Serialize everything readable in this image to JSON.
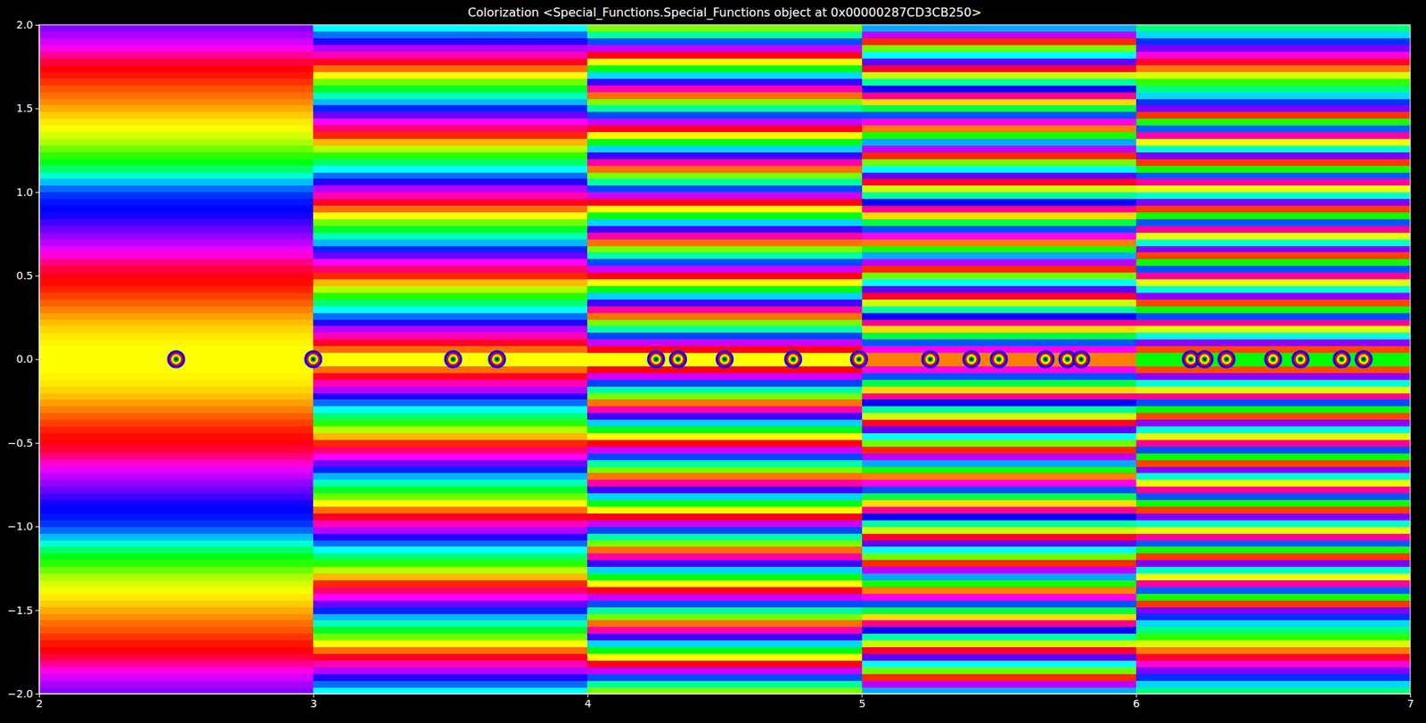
{
  "chart_data": {
    "type": "heatmap",
    "title": "Colorization <Special_Functions.Special_Functions object at 0x00000287CD3CB250>",
    "xlim": [
      2,
      7
    ],
    "ylim": [
      -2,
      2
    ],
    "xticks": [
      2,
      3,
      4,
      5,
      6,
      7
    ],
    "yticks": [
      {
        "value": -2,
        "label": "−2.0"
      },
      {
        "value": -1.5,
        "label": "−1.5"
      },
      {
        "value": -1,
        "label": "−1.0"
      },
      {
        "value": -0.5,
        "label": "−0.5"
      },
      {
        "value": 0,
        "label": "0.0"
      },
      {
        "value": 0.5,
        "label": "0.5"
      },
      {
        "value": 1,
        "label": "1.0"
      },
      {
        "value": 1.5,
        "label": "1.5"
      },
      {
        "value": 2,
        "label": "2.0"
      }
    ],
    "zlim": [
      0,
      360
    ],
    "x_bins": [
      2,
      3,
      4,
      5,
      6,
      7
    ],
    "y_bins": [
      -2,
      -1.96,
      -1.92,
      -1.88,
      -1.84,
      -1.8,
      -1.76,
      -1.72,
      -1.68,
      -1.64,
      -1.6,
      -1.56,
      -1.52,
      -1.48,
      -1.44,
      -1.4,
      -1.36,
      -1.32,
      -1.28,
      -1.24,
      -1.2,
      -1.16,
      -1.12,
      -1.08,
      -1.04,
      -1,
      -0.96,
      -0.92,
      -0.88,
      -0.84,
      -0.8,
      -0.76,
      -0.72,
      -0.68,
      -0.64,
      -0.6,
      -0.56,
      -0.52,
      -0.48,
      -0.44,
      -0.4,
      -0.36,
      -0.32,
      -0.28,
      -0.24,
      -0.2,
      -0.16,
      -0.12,
      -0.08,
      -0.04,
      0,
      0.04,
      0.08,
      0.12,
      0.16,
      0.2,
      0.24,
      0.28,
      0.32,
      0.36,
      0.4,
      0.44,
      0.48,
      0.52,
      0.56,
      0.6,
      0.64,
      0.68,
      0.72,
      0.76,
      0.8,
      0.84,
      0.88,
      0.92,
      0.96,
      1,
      1.04,
      1.08,
      1.12,
      1.16,
      1.2,
      1.24,
      1.28,
      1.32,
      1.36,
      1.4,
      1.44,
      1.48,
      1.52,
      1.56,
      1.6,
      1.64,
      1.68,
      1.72,
      1.76,
      1.8,
      1.84,
      1.88,
      1.92,
      1.96,
      2
    ],
    "cells": [
      [
        272,
        280,
        290,
        305,
        325,
        345,
        358,
        5,
        12,
        20,
        26,
        33,
        40,
        48,
        55,
        62,
        70,
        80,
        95,
        110,
        125,
        145,
        170,
        195,
        215,
        228,
        235,
        240,
        245,
        255,
        265,
        275,
        285,
        295,
        310,
        330,
        345,
        355,
        2,
        8,
        15,
        22,
        30,
        38,
        45,
        50,
        55,
        58,
        60,
        60,
        60,
        60,
        58,
        55,
        50,
        45,
        38,
        30,
        22,
        15,
        8,
        2,
        355,
        345,
        330,
        310,
        295,
        285,
        275,
        265,
        255,
        245,
        240,
        235,
        228,
        215,
        195,
        170,
        145,
        125,
        110,
        95,
        80,
        70,
        62,
        55,
        48,
        40,
        33,
        26,
        20,
        12,
        5,
        358,
        345,
        325,
        305,
        290,
        280,
        272
      ],
      [
        180,
        214,
        249,
        283,
        317,
        351,
        26,
        60,
        94,
        129,
        163,
        197,
        231,
        266,
        300,
        334,
        9,
        43,
        77,
        111,
        146,
        180,
        214,
        249,
        283,
        317,
        351,
        26,
        60,
        94,
        129,
        163,
        197,
        231,
        266,
        300,
        334,
        9,
        43,
        77,
        111,
        146,
        180,
        214,
        249,
        283,
        317,
        351,
        26,
        60,
        60,
        26,
        351,
        317,
        283,
        249,
        214,
        180,
        146,
        111,
        77,
        43,
        9,
        334,
        300,
        266,
        231,
        197,
        163,
        129,
        94,
        60,
        26,
        351,
        317,
        283,
        249,
        214,
        180,
        146,
        111,
        77,
        43,
        9,
        334,
        300,
        266,
        231,
        197,
        163,
        129,
        94,
        60,
        26,
        351,
        317,
        283,
        249,
        214,
        180
      ],
      [
        91,
        156,
        222,
        287,
        353,
        58,
        124,
        189,
        255,
        320,
        26,
        91,
        157,
        222,
        288,
        353,
        59,
        124,
        190,
        255,
        321,
        26,
        92,
        157,
        223,
        288,
        354,
        59,
        125,
        190,
        256,
        321,
        27,
        92,
        158,
        223,
        289,
        354,
        60,
        125,
        191,
        256,
        322,
        27,
        93,
        158,
        224,
        289,
        355,
        60,
        60,
        355,
        289,
        224,
        158,
        93,
        27,
        322,
        256,
        191,
        125,
        60,
        354,
        289,
        223,
        158,
        92,
        27,
        321,
        256,
        190,
        125,
        59,
        354,
        288,
        223,
        157,
        92,
        26,
        321,
        255,
        190,
        124,
        59,
        353,
        288,
        222,
        157,
        91,
        26,
        320,
        255,
        189,
        124,
        58,
        353,
        287,
        222,
        156,
        91
      ],
      [
        200,
        284,
        9,
        94,
        179,
        263,
        348,
        73,
        157,
        242,
        327,
        51,
        136,
        221,
        306,
        30,
        115,
        200,
        284,
        9,
        94,
        178,
        263,
        348,
        73,
        157,
        242,
        327,
        51,
        136,
        221,
        305,
        30,
        115,
        200,
        284,
        9,
        94,
        178,
        263,
        348,
        72,
        157,
        242,
        327,
        51,
        136,
        221,
        305,
        30,
        30,
        305,
        221,
        136,
        51,
        327,
        242,
        157,
        72,
        348,
        263,
        178,
        94,
        9,
        284,
        200,
        115,
        30,
        305,
        221,
        136,
        51,
        327,
        242,
        157,
        73,
        348,
        263,
        178,
        94,
        9,
        284,
        200,
        115,
        30,
        306,
        221,
        136,
        51,
        327,
        242,
        157,
        73,
        348,
        263,
        179,
        94,
        9,
        284,
        200
      ],
      [
        149,
        189,
        229,
        269,
        309,
        349,
        29,
        69,
        109,
        149,
        189,
        229,
        269,
        12,
        115,
        218,
        321,
        64,
        167,
        270,
        13,
        116,
        219,
        322,
        65,
        168,
        271,
        14,
        117,
        220,
        323,
        66,
        169,
        272,
        15,
        118,
        221,
        324,
        67,
        170,
        273,
        16,
        119,
        222,
        325,
        68,
        171,
        274,
        17,
        120,
        120,
        17,
        274,
        171,
        68,
        325,
        222,
        119,
        16,
        273,
        170,
        67,
        324,
        221,
        118,
        15,
        272,
        169,
        66,
        323,
        220,
        117,
        14,
        271,
        168,
        65,
        322,
        219,
        116,
        13,
        270,
        167,
        64,
        321,
        218,
        115,
        12,
        269,
        229,
        189,
        149,
        109,
        69,
        29,
        349,
        309,
        269,
        229,
        189,
        149
      ]
    ],
    "zeros": {
      "x": [
        2.5,
        3.0,
        3.51,
        3.67,
        4.25,
        4.33,
        4.5,
        4.75,
        4.99,
        5.25,
        5.4,
        5.5,
        5.67,
        5.75,
        5.8,
        6.2,
        6.25,
        6.33,
        6.5,
        6.6,
        6.75,
        6.83
      ],
      "y": [
        0,
        0,
        0,
        0,
        0,
        0,
        0,
        0,
        0,
        0,
        0,
        0,
        0,
        0,
        0,
        0,
        0,
        0,
        0,
        0,
        0,
        0
      ]
    }
  }
}
